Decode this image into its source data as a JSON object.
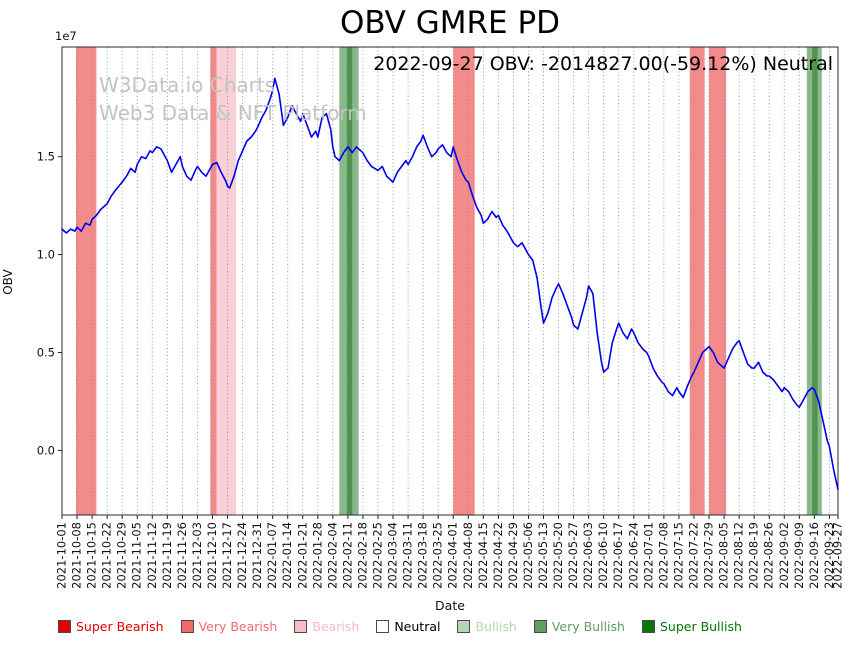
{
  "title": "OBV GMRE PD",
  "annotation": "2022-09-27 OBV: -2014827.00(-59.12%) Neutral",
  "watermark": {
    "line1": "W3Data.io Charts",
    "line2": "Web3 Data & NFT Platform"
  },
  "chart_data": {
    "type": "line",
    "title": "OBV GMRE PD",
    "xlabel": "Date",
    "ylabel": "OBV",
    "y_scale_note": "1e7",
    "line_color": "#0000ee",
    "background": "#ffffff",
    "grid": {
      "vertical": true,
      "style": "dotted",
      "color": "#8f8f8f"
    },
    "xlim_days": [
      0,
      361
    ],
    "ylim": [
      -0.33,
      2.06
    ],
    "y_ticks": [
      "0.0",
      "0.5",
      "1.0",
      "1.5"
    ],
    "x_tick_days": [
      0,
      7,
      14,
      21,
      28,
      35,
      42,
      49,
      56,
      63,
      70,
      77,
      84,
      91,
      98,
      105,
      112,
      119,
      126,
      133,
      140,
      147,
      154,
      161,
      168,
      175,
      182,
      189,
      196,
      203,
      210,
      217,
      224,
      231,
      238,
      245,
      252,
      259,
      266,
      273,
      280,
      287,
      294,
      301,
      308,
      315,
      322,
      329,
      336,
      343,
      350,
      357,
      361
    ],
    "x_tick_labels": [
      "2021-10-01",
      "2021-10-08",
      "2021-10-15",
      "2021-10-22",
      "2021-10-29",
      "2021-11-05",
      "2021-11-12",
      "2021-11-19",
      "2021-11-26",
      "2021-12-03",
      "2021-12-10",
      "2021-12-17",
      "2021-12-24",
      "2021-12-31",
      "2022-01-07",
      "2022-01-14",
      "2022-01-21",
      "2022-01-28",
      "2022-02-04",
      "2022-02-11",
      "2022-02-18",
      "2022-02-25",
      "2022-03-04",
      "2022-03-11",
      "2022-03-18",
      "2022-03-25",
      "2022-04-01",
      "2022-04-08",
      "2022-04-15",
      "2022-04-22",
      "2022-04-29",
      "2022-05-06",
      "2022-05-13",
      "2022-05-20",
      "2022-05-27",
      "2022-06-03",
      "2022-06-10",
      "2022-06-17",
      "2022-06-24",
      "2022-07-01",
      "2022-07-08",
      "2022-07-15",
      "2022-07-22",
      "2022-07-29",
      "2022-08-05",
      "2022-08-12",
      "2022-08-19",
      "2022-08-26",
      "2022-09-02",
      "2022-09-09",
      "2022-09-16",
      "2022-09-23",
      "2022-09-27"
    ],
    "series": [
      {
        "name": "OBV",
        "x_days": [
          0,
          2,
          4,
          6,
          7,
          9,
          11,
          13,
          14,
          16,
          18,
          21,
          23,
          25,
          28,
          30,
          32,
          34,
          35,
          37,
          39,
          41,
          42,
          44,
          46,
          48,
          49,
          51,
          53,
          55,
          56,
          58,
          60,
          62,
          63,
          65,
          67,
          69,
          70,
          72,
          74,
          76,
          77,
          78,
          80,
          82,
          84,
          86,
          88,
          90,
          91,
          93,
          95,
          97,
          98,
          99,
          101,
          103,
          105,
          107,
          109,
          111,
          112,
          114,
          116,
          118,
          119,
          121,
          123,
          125,
          126,
          127,
          129,
          131,
          133,
          135,
          137,
          140,
          142,
          144,
          147,
          149,
          151,
          154,
          156,
          158,
          160,
          161,
          163,
          165,
          167,
          168,
          170,
          172,
          174,
          175,
          177,
          179,
          181,
          182,
          184,
          186,
          188,
          189,
          191,
          193,
          195,
          196,
          198,
          200,
          202,
          203,
          205,
          207,
          209,
          210,
          212,
          214,
          216,
          217,
          219,
          221,
          223,
          224,
          226,
          228,
          230,
          231,
          233,
          235,
          237,
          238,
          240,
          242,
          244,
          245,
          247,
          249,
          251,
          252,
          254,
          256,
          258,
          259,
          261,
          263,
          265,
          266,
          268,
          270,
          272,
          273,
          275,
          277,
          279,
          280,
          282,
          284,
          286,
          287,
          289,
          291,
          293,
          294,
          296,
          298,
          300,
          301,
          303,
          305,
          307,
          308,
          310,
          312,
          314,
          315,
          317,
          319,
          321,
          322,
          324,
          326,
          328,
          329,
          331,
          333,
          335,
          336,
          338,
          340,
          342,
          343,
          345,
          347,
          349,
          350,
          352,
          354,
          356,
          357,
          359,
          361
        ],
        "values_1e7": [
          1.13,
          1.11,
          1.13,
          1.12,
          1.14,
          1.12,
          1.16,
          1.15,
          1.18,
          1.2,
          1.23,
          1.26,
          1.3,
          1.33,
          1.37,
          1.4,
          1.44,
          1.42,
          1.46,
          1.5,
          1.49,
          1.53,
          1.52,
          1.55,
          1.54,
          1.5,
          1.48,
          1.42,
          1.46,
          1.5,
          1.45,
          1.4,
          1.38,
          1.43,
          1.45,
          1.42,
          1.4,
          1.44,
          1.46,
          1.47,
          1.42,
          1.38,
          1.35,
          1.34,
          1.4,
          1.48,
          1.53,
          1.58,
          1.6,
          1.63,
          1.65,
          1.7,
          1.74,
          1.8,
          1.84,
          1.9,
          1.82,
          1.66,
          1.7,
          1.76,
          1.72,
          1.68,
          1.72,
          1.66,
          1.6,
          1.63,
          1.6,
          1.7,
          1.72,
          1.64,
          1.55,
          1.5,
          1.48,
          1.52,
          1.55,
          1.52,
          1.55,
          1.52,
          1.48,
          1.45,
          1.43,
          1.45,
          1.4,
          1.37,
          1.42,
          1.45,
          1.48,
          1.46,
          1.5,
          1.55,
          1.58,
          1.61,
          1.55,
          1.5,
          1.52,
          1.54,
          1.56,
          1.52,
          1.5,
          1.55,
          1.48,
          1.42,
          1.38,
          1.37,
          1.3,
          1.24,
          1.2,
          1.16,
          1.18,
          1.22,
          1.19,
          1.2,
          1.15,
          1.12,
          1.08,
          1.06,
          1.04,
          1.06,
          1.02,
          1.0,
          0.97,
          0.88,
          0.72,
          0.65,
          0.7,
          0.78,
          0.83,
          0.85,
          0.8,
          0.74,
          0.68,
          0.64,
          0.62,
          0.7,
          0.78,
          0.84,
          0.8,
          0.6,
          0.45,
          0.4,
          0.42,
          0.55,
          0.62,
          0.65,
          0.6,
          0.57,
          0.62,
          0.6,
          0.55,
          0.52,
          0.5,
          0.48,
          0.42,
          0.38,
          0.35,
          0.34,
          0.3,
          0.28,
          0.32,
          0.3,
          0.27,
          0.33,
          0.38,
          0.4,
          0.45,
          0.5,
          0.52,
          0.53,
          0.5,
          0.45,
          0.43,
          0.42,
          0.47,
          0.52,
          0.55,
          0.56,
          0.5,
          0.44,
          0.42,
          0.42,
          0.45,
          0.4,
          0.38,
          0.38,
          0.36,
          0.33,
          0.3,
          0.32,
          0.3,
          0.26,
          0.23,
          0.22,
          0.26,
          0.3,
          0.32,
          0.31,
          0.25,
          0.15,
          0.05,
          0.02,
          -0.1,
          -0.2
        ]
      }
    ],
    "signal_bands": [
      {
        "signal": "Very Bearish",
        "from_day": 6.5,
        "to_day": 16,
        "color": "#f38b8b"
      },
      {
        "signal": "Very Bearish",
        "from_day": 69,
        "to_day": 72,
        "color": "#f38b8b"
      },
      {
        "signal": "Bearish",
        "from_day": 72,
        "to_day": 81,
        "color": "#f9d0d6"
      },
      {
        "signal": "Very Bullish",
        "from_day": 129,
        "to_day": 138,
        "color": "#8ab88a"
      },
      {
        "signal": "Very Bullish",
        "from_day": 132.5,
        "to_day": 135,
        "color": "#4d924d"
      },
      {
        "signal": "Very Bearish",
        "from_day": 182,
        "to_day": 192,
        "color": "#f38b8b"
      },
      {
        "signal": "Very Bearish",
        "from_day": 292,
        "to_day": 299,
        "color": "#f38b8b"
      },
      {
        "signal": "Very Bearish",
        "from_day": 301,
        "to_day": 309,
        "color": "#f38b8b"
      },
      {
        "signal": "Very Bullish",
        "from_day": 346.5,
        "to_day": 353.5,
        "color": "#8ab88a"
      },
      {
        "signal": "Very Bullish",
        "from_day": 349,
        "to_day": 351.5,
        "color": "#4d924d"
      }
    ]
  },
  "legend": {
    "items": [
      {
        "label": "Super Bearish",
        "swatch_color": "#e60000",
        "label_color": "#e60000"
      },
      {
        "label": "Very Bearish",
        "swatch_color": "#f06a6a",
        "label_color": "#f06a6a"
      },
      {
        "label": "Bearish",
        "swatch_color": "#f7bcc4",
        "label_color": "#f7bcc4"
      },
      {
        "label": "Neutral",
        "swatch_color": "#ffffff",
        "label_color": "#000000"
      },
      {
        "label": "Bullish",
        "swatch_color": "#b5d6b5",
        "label_color": "#b5d6b5"
      },
      {
        "label": "Very Bullish",
        "swatch_color": "#5f9e5f",
        "label_color": "#5f9e5f"
      },
      {
        "label": "Super Bullish",
        "swatch_color": "#067806",
        "label_color": "#067806"
      }
    ]
  }
}
